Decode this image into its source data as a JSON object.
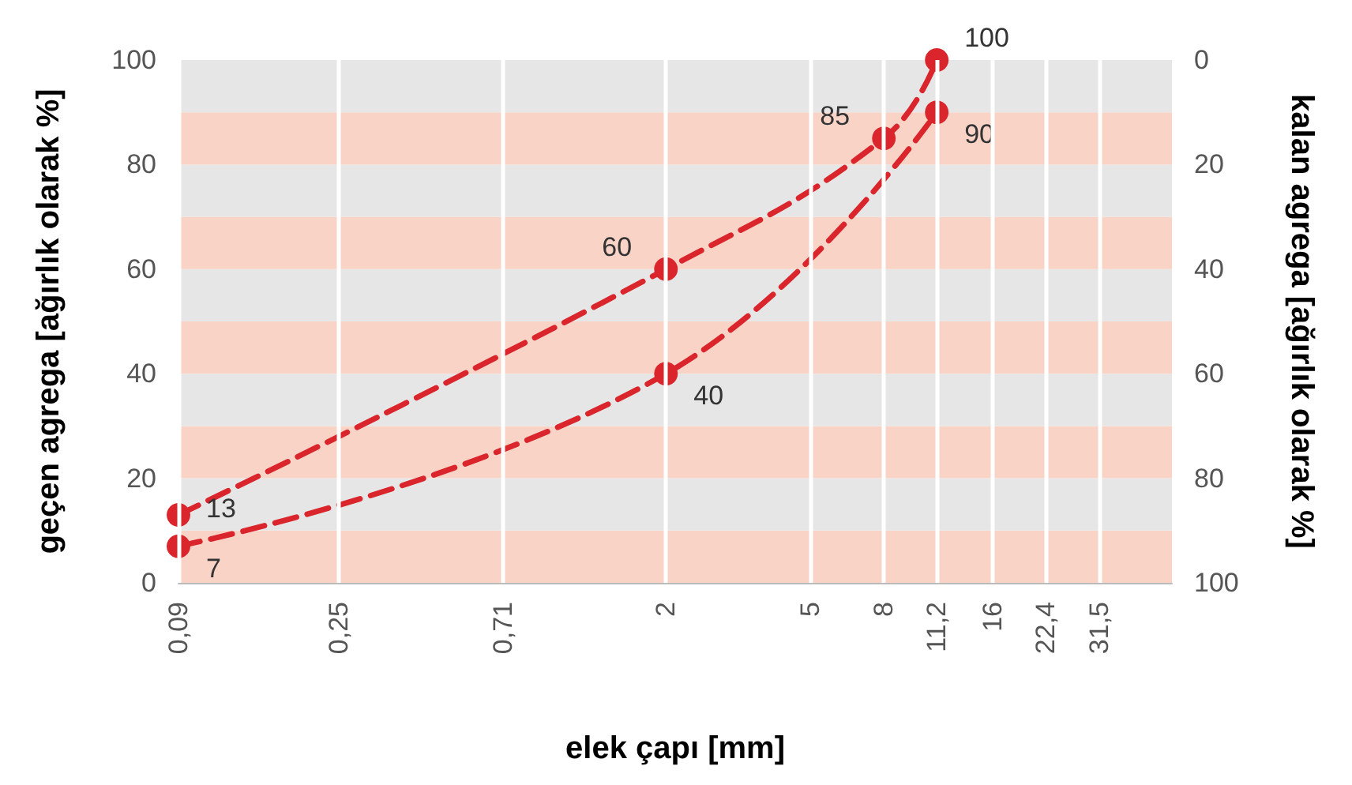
{
  "chart_data": {
    "type": "line",
    "xlabel": "elek çapı [mm]",
    "ylabel": "geçen agrega [ağırlık olarak %]",
    "y2label": "kalan agrega [ağırlık olarak %]",
    "log": "x",
    "xlim": [
      0.09,
      50
    ],
    "xticks": [
      {
        "value": 0.09,
        "label": "0,09"
      },
      {
        "value": 0.25,
        "label": "0,25"
      },
      {
        "value": 0.71,
        "label": "0,71"
      },
      2,
      5,
      8,
      {
        "value": 11.2,
        "label": "11,2"
      },
      16,
      {
        "value": 22.4,
        "label": "22,4"
      },
      {
        "value": 31.5,
        "label": "31,5"
      }
    ],
    "ylim": [
      0,
      100
    ],
    "yticks": [
      0,
      20,
      40,
      60,
      80,
      100
    ],
    "y2lim": [
      100,
      0
    ],
    "y2ticks": [
      100,
      80,
      60,
      40,
      20,
      0
    ],
    "grid": "x",
    "marker": "circle",
    "data_labels": true,
    "line_style": "dashed",
    "bands": [
      {
        "axis": "y",
        "from": 0,
        "to": 10,
        "color": "#f9d3c6"
      },
      {
        "axis": "y",
        "from": 10,
        "to": 20,
        "color": "#e6e6e6"
      },
      {
        "axis": "y",
        "from": 20,
        "to": 30,
        "color": "#f9d3c6"
      },
      {
        "axis": "y",
        "from": 30,
        "to": 40,
        "color": "#e6e6e6"
      },
      {
        "axis": "y",
        "from": 40,
        "to": 50,
        "color": "#f9d3c6"
      },
      {
        "axis": "y",
        "from": 50,
        "to": 60,
        "color": "#e6e6e6"
      },
      {
        "axis": "y",
        "from": 60,
        "to": 70,
        "color": "#f9d3c6"
      },
      {
        "axis": "y",
        "from": 70,
        "to": 80,
        "color": "#e6e6e6"
      },
      {
        "axis": "y",
        "from": 80,
        "to": 90,
        "color": "#f9d3c6"
      },
      {
        "axis": "y",
        "from": 90,
        "to": 100,
        "color": "#e6e6e6"
      }
    ],
    "series": [
      {
        "color": "#d9252b",
        "x": [
          0.09,
          2,
          8,
          11.2
        ],
        "values": [
          13,
          60,
          85,
          100
        ]
      },
      {
        "color": "#d9252b",
        "x": [
          0.09,
          2,
          11.2
        ],
        "values": [
          7,
          40,
          90
        ]
      }
    ]
  }
}
